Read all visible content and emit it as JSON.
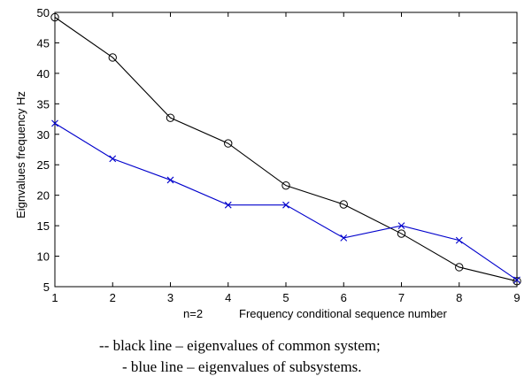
{
  "chart_data": {
    "type": "line",
    "title": "",
    "xlabel": "Frequency conditional sequence number",
    "xlabel_prefix": "n=2",
    "ylabel": "Eignvalues frequency Hz",
    "x": [
      1,
      2,
      3,
      4,
      5,
      6,
      7,
      8,
      9
    ],
    "xlim": [
      1,
      9
    ],
    "ylim": [
      5,
      50
    ],
    "xticks": [
      "1",
      "2",
      "3",
      "4",
      "5",
      "6",
      "7",
      "8",
      "9"
    ],
    "yticks": [
      "5",
      "10",
      "15",
      "20",
      "25",
      "30",
      "35",
      "40",
      "45",
      "50"
    ],
    "grid": false,
    "series": [
      {
        "color": "#000000",
        "marker": "circle",
        "values": [
          49.2,
          42.6,
          32.7,
          28.5,
          21.6,
          18.5,
          13.7,
          8.2,
          5.9
        ]
      },
      {
        "color": "#0000cc",
        "marker": "x",
        "values": [
          31.8,
          26.0,
          22.5,
          18.4,
          18.4,
          13.0,
          15.0,
          12.6,
          6.1
        ]
      }
    ]
  },
  "captions": [
    "-- black line – eigenvalues of common system;",
    "- blue line – eigenvalues of subsystems."
  ]
}
